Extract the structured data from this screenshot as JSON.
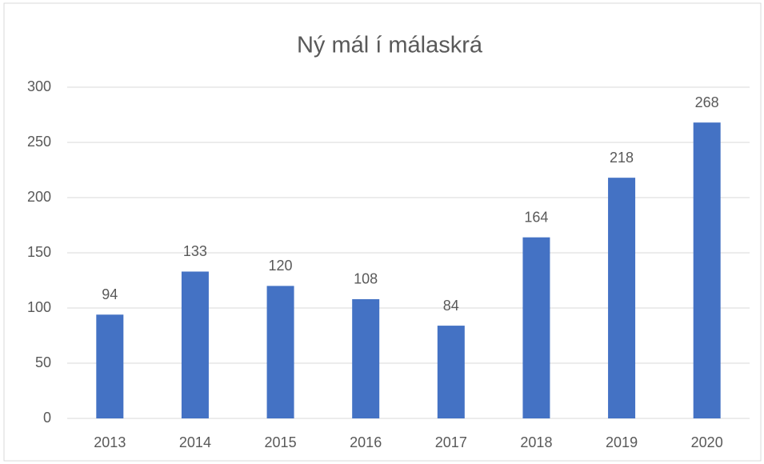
{
  "chart_data": {
    "type": "bar",
    "title": "Ný mál í málaskrá",
    "categories": [
      "2013",
      "2014",
      "2015",
      "2016",
      "2017",
      "2018",
      "2019",
      "2020"
    ],
    "values": [
      94,
      133,
      120,
      108,
      84,
      164,
      218,
      268
    ],
    "color": "#4472c4",
    "ylim": [
      0,
      300
    ],
    "yticks": [
      0,
      50,
      100,
      150,
      200,
      250,
      300
    ],
    "grid": true,
    "data_labels": true
  }
}
